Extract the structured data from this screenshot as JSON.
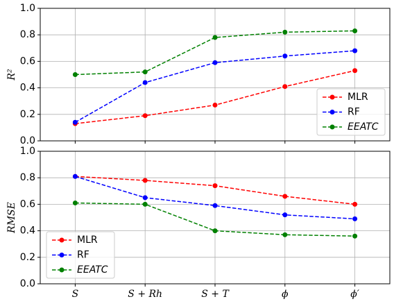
{
  "chart_data": [
    {
      "type": "line",
      "ylabel": "R²",
      "ylim": [
        0,
        1
      ],
      "yticks": [
        {
          "value": 0,
          "label": "0.0"
        },
        0.2,
        0.4,
        0.6,
        0.8,
        {
          "value": 1,
          "label": "1.0"
        }
      ],
      "grid": true,
      "legend": "lower right",
      "series": [
        {
          "name": "MLR",
          "color": "#ff0000",
          "values": [
            0.13,
            0.19,
            0.27,
            0.41,
            0.53
          ]
        },
        {
          "name": "RF",
          "color": "#0000ff",
          "values": [
            0.14,
            0.44,
            0.59,
            0.64,
            0.68
          ]
        },
        {
          "name": "EEATC",
          "color": "#008000",
          "values": [
            0.5,
            0.52,
            0.78,
            0.82,
            0.83
          ]
        }
      ]
    },
    {
      "type": "line",
      "ylabel": "RMSE",
      "ylim": [
        0,
        1
      ],
      "categories": [
        "S",
        "S + Rh",
        "S + T",
        "ϕ",
        "ϕ′"
      ],
      "yticks": [
        {
          "value": 0,
          "label": "0.0"
        },
        0.2,
        0.4,
        0.6,
        0.8,
        {
          "value": 1,
          "label": "1.0"
        }
      ],
      "grid": true,
      "legend": "lower left",
      "series": [
        {
          "name": "MLR",
          "color": "#ff0000",
          "values": [
            0.81,
            0.78,
            0.74,
            0.66,
            0.6
          ]
        },
        {
          "name": "RF",
          "color": "#0000ff",
          "values": [
            0.81,
            0.65,
            0.59,
            0.52,
            0.49
          ]
        },
        {
          "name": "EEATC",
          "color": "#008000",
          "values": [
            0.61,
            0.6,
            0.4,
            0.37,
            0.36
          ]
        }
      ]
    }
  ]
}
